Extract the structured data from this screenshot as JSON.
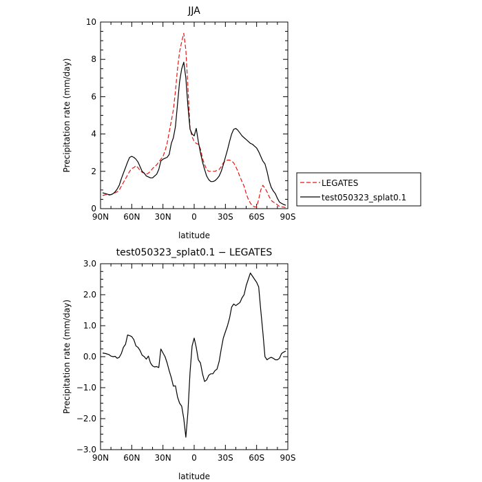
{
  "chart_data": [
    {
      "type": "line",
      "title": "JJA",
      "xlabel": "latitude",
      "ylabel": "Precipitation rate (mm/day)",
      "x_tick_labels": [
        "90N",
        "60N",
        "30N",
        "0",
        "30S",
        "60S",
        "90S"
      ],
      "x_tick_values": [
        90,
        60,
        30,
        0,
        -30,
        -60,
        -90
      ],
      "xlim": [
        90,
        -90
      ],
      "ylim": [
        0,
        10
      ],
      "y_ticks": [
        0,
        2,
        4,
        6,
        8,
        10
      ],
      "y_tick_labels": [
        "0",
        "2",
        "4",
        "6",
        "8",
        "10"
      ],
      "legend_position": "right",
      "series": [
        {
          "name": "LEGATES",
          "color": "#e8140f",
          "dash": "dashed",
          "x": [
            88,
            85,
            82,
            80,
            78,
            76,
            74,
            72,
            70,
            68,
            66,
            64,
            62,
            60,
            58,
            56,
            54,
            52,
            50,
            48,
            46,
            44,
            42,
            40,
            38,
            36,
            34,
            32,
            30,
            28,
            26,
            24,
            22,
            20,
            18,
            16,
            14,
            12,
            10,
            8,
            6,
            4,
            2,
            0,
            -2,
            -4,
            -6,
            -8,
            -10,
            -12,
            -14,
            -16,
            -18,
            -20,
            -22,
            -24,
            -26,
            -28,
            -30,
            -32,
            -34,
            -36,
            -38,
            -40,
            -42,
            -44,
            -46,
            -48,
            -50,
            -52,
            -54,
            -56,
            -58,
            -60,
            -62,
            -64,
            -66,
            -68,
            -70,
            -72,
            -74,
            -76,
            -78,
            -80,
            -82,
            -84,
            -86,
            -88
          ],
          "y": [
            0.7,
            0.75,
            0.72,
            0.75,
            0.8,
            0.85,
            0.9,
            1.0,
            1.2,
            1.4,
            1.6,
            1.8,
            2.0,
            2.15,
            2.2,
            2.3,
            2.2,
            2.05,
            1.95,
            1.9,
            1.85,
            1.9,
            2.0,
            2.15,
            2.25,
            2.35,
            2.5,
            2.65,
            2.8,
            3.1,
            3.5,
            4.1,
            4.7,
            5.3,
            6.3,
            7.5,
            8.4,
            8.95,
            9.4,
            8.5,
            6.5,
            4.3,
            3.85,
            3.6,
            3.5,
            3.45,
            3.2,
            2.7,
            2.35,
            2.1,
            2.0,
            2.0,
            2.0,
            2.0,
            2.05,
            2.1,
            2.25,
            2.45,
            2.55,
            2.6,
            2.6,
            2.55,
            2.45,
            2.25,
            2.0,
            1.7,
            1.45,
            1.2,
            0.8,
            0.5,
            0.3,
            0.15,
            0.1,
            0.1,
            0.5,
            1.0,
            1.25,
            1.1,
            0.9,
            0.65,
            0.45,
            0.35,
            0.3,
            0.2,
            0.12,
            0.1,
            0.08,
            0.05
          ]
        },
        {
          "name": "test050323_splat0.1",
          "color": "#000000",
          "dash": "solid",
          "x": [
            88,
            85,
            82,
            80,
            78,
            76,
            74,
            72,
            70,
            68,
            66,
            64,
            62,
            60,
            58,
            56,
            54,
            52,
            50,
            48,
            46,
            44,
            42,
            40,
            38,
            36,
            34,
            32,
            30,
            28,
            26,
            24,
            22,
            20,
            18,
            16,
            14,
            12,
            10,
            8,
            6,
            4,
            2,
            0,
            -2,
            -4,
            -6,
            -8,
            -10,
            -12,
            -14,
            -16,
            -18,
            -20,
            -22,
            -24,
            -26,
            -28,
            -30,
            -32,
            -34,
            -36,
            -38,
            -40,
            -42,
            -44,
            -46,
            -48,
            -50,
            -52,
            -54,
            -56,
            -58,
            -60,
            -62,
            -64,
            -66,
            -68,
            -70,
            -72,
            -74,
            -76,
            -78,
            -80,
            -82,
            -84,
            -86,
            -88
          ],
          "y": [
            0.85,
            0.8,
            0.75,
            0.75,
            0.8,
            0.9,
            1.05,
            1.25,
            1.6,
            1.9,
            2.2,
            2.5,
            2.75,
            2.8,
            2.75,
            2.65,
            2.5,
            2.25,
            2.0,
            1.9,
            1.75,
            1.7,
            1.65,
            1.65,
            1.75,
            1.85,
            2.1,
            2.55,
            2.65,
            2.7,
            2.75,
            2.9,
            3.5,
            3.8,
            4.4,
            5.6,
            6.8,
            7.5,
            7.85,
            7.0,
            5.5,
            4.25,
            4.0,
            3.9,
            4.3,
            3.6,
            3.0,
            2.5,
            2.1,
            1.75,
            1.55,
            1.45,
            1.45,
            1.5,
            1.6,
            1.75,
            2.0,
            2.35,
            2.75,
            3.15,
            3.6,
            4.0,
            4.25,
            4.3,
            4.2,
            4.05,
            3.9,
            3.8,
            3.7,
            3.6,
            3.5,
            3.45,
            3.35,
            3.25,
            3.05,
            2.8,
            2.55,
            2.4,
            2.0,
            1.5,
            1.15,
            0.95,
            0.8,
            0.55,
            0.35,
            0.28,
            0.22,
            0.18
          ]
        }
      ]
    },
    {
      "type": "line",
      "title": "test050323_splat0.1 − LEGATES",
      "xlabel": "latitude",
      "ylabel": "Precipitation rate (mm/day)",
      "x_tick_labels": [
        "90N",
        "60N",
        "30N",
        "0",
        "30S",
        "60S",
        "90S"
      ],
      "x_tick_values": [
        90,
        60,
        30,
        0,
        -30,
        -60,
        -90
      ],
      "xlim": [
        90,
        -90
      ],
      "ylim": [
        -3,
        3
      ],
      "y_ticks": [
        -3,
        -2,
        -1,
        0,
        1,
        2,
        3
      ],
      "y_tick_labels": [
        "−3.0",
        "−2.0",
        "−1.0",
        "0.0",
        "1.0",
        "2.0",
        "3.0"
      ],
      "series": [
        {
          "name": "",
          "color": "#000000",
          "dash": "solid",
          "x": [
            88,
            85,
            82,
            80,
            78,
            76,
            74,
            72,
            70,
            68,
            66,
            64,
            62,
            60,
            58,
            56,
            54,
            52,
            50,
            48,
            46,
            44,
            42,
            40,
            38,
            36,
            34,
            32,
            30,
            28,
            26,
            24,
            22,
            20,
            18,
            16,
            14,
            12,
            10,
            8,
            6,
            4,
            2,
            0,
            -2,
            -4,
            -6,
            -8,
            -10,
            -12,
            -14,
            -16,
            -18,
            -20,
            -22,
            -24,
            -26,
            -28,
            -30,
            -32,
            -34,
            -36,
            -38,
            -40,
            -42,
            -44,
            -46,
            -48,
            -50,
            -52,
            -54,
            -56,
            -58,
            -60,
            -62,
            -64,
            -66,
            -68,
            -70,
            -72,
            -74,
            -76,
            -78,
            -80,
            -82,
            -84,
            -86,
            -88
          ],
          "y": [
            0.12,
            0.1,
            0.07,
            0.02,
            0.0,
            0.01,
            -0.05,
            -0.02,
            0.1,
            0.3,
            0.4,
            0.7,
            0.68,
            0.65,
            0.55,
            0.35,
            0.3,
            0.2,
            0.05,
            0.0,
            -0.08,
            0.02,
            -0.2,
            -0.3,
            -0.33,
            -0.32,
            -0.35,
            0.25,
            0.12,
            0.0,
            -0.2,
            -0.45,
            -0.68,
            -0.95,
            -0.94,
            -1.3,
            -1.5,
            -1.6,
            -2.0,
            -2.6,
            -1.8,
            -0.5,
            0.35,
            0.6,
            0.3,
            -0.1,
            -0.2,
            -0.55,
            -0.8,
            -0.75,
            -0.6,
            -0.55,
            -0.55,
            -0.45,
            -0.4,
            -0.15,
            0.25,
            0.6,
            0.8,
            1.0,
            1.25,
            1.6,
            1.7,
            1.65,
            1.7,
            1.75,
            1.9,
            2.0,
            2.3,
            2.5,
            2.7,
            2.6,
            2.5,
            2.4,
            2.25,
            1.5,
            0.8,
            0.0,
            -0.1,
            -0.05,
            -0.02,
            -0.05,
            -0.1,
            -0.1,
            -0.05,
            0.1,
            0.15,
            0.18
          ]
        }
      ]
    }
  ]
}
